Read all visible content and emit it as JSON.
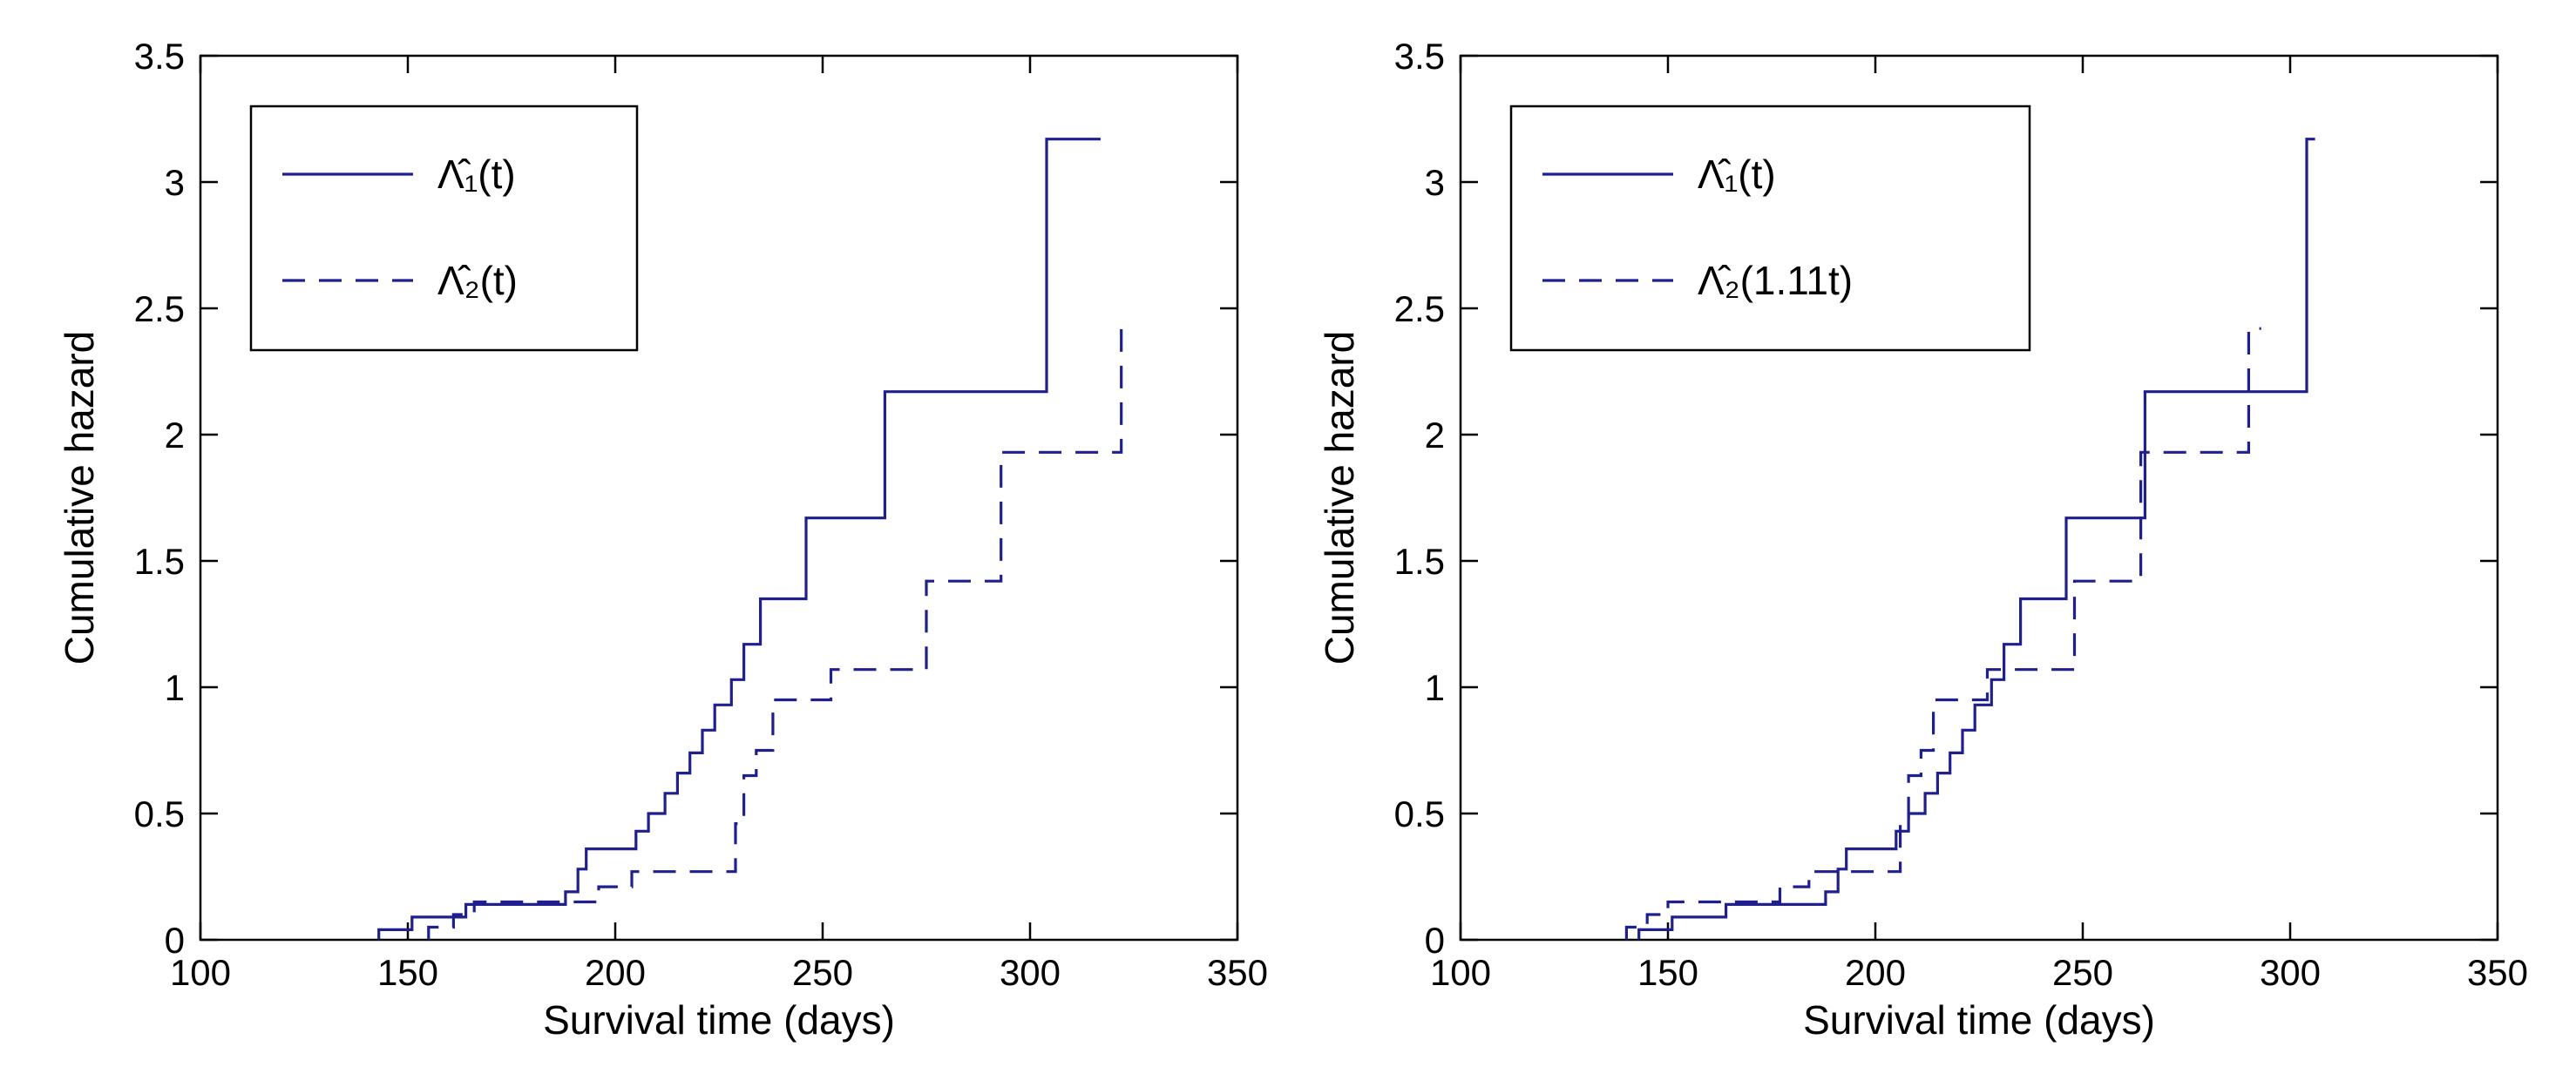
{
  "figure": {
    "background": "#ffffff",
    "line_color": "#1f1f8e",
    "axis_color": "#000000",
    "text_color": "#000000"
  },
  "chart_data": [
    {
      "type": "line",
      "subtype": "step",
      "title": "",
      "xlabel": "Survival time (days)",
      "ylabel": "Cumulative hazard",
      "xlim": [
        100,
        350
      ],
      "ylim": [
        0,
        3.5
      ],
      "xticks": [
        100,
        150,
        200,
        250,
        300,
        350
      ],
      "yticks": [
        0,
        0.5,
        1,
        1.5,
        2,
        2.5,
        3,
        3.5
      ],
      "grid": false,
      "legend_position": "upper-left",
      "series": [
        {
          "name": "Λ̂₁(t)",
          "style": "solid",
          "x": [
            143,
            151,
            164,
            188,
            191,
            193,
            205,
            208,
            212,
            215,
            218,
            221,
            224,
            228,
            231,
            235,
            246,
            265,
            304
          ],
          "y": [
            0.04,
            0.09,
            0.14,
            0.19,
            0.28,
            0.36,
            0.43,
            0.5,
            0.58,
            0.66,
            0.74,
            0.83,
            0.93,
            1.03,
            1.17,
            1.35,
            1.67,
            2.17,
            3.17
          ],
          "x_end": 317
        },
        {
          "name": "Λ̂₂(t)",
          "style": "dashed",
          "x": [
            155,
            161,
            166,
            196,
            204,
            229,
            231,
            234,
            238,
            252,
            275,
            293,
            322
          ],
          "y": [
            0.05,
            0.1,
            0.15,
            0.21,
            0.27,
            0.46,
            0.65,
            0.75,
            0.95,
            1.07,
            1.42,
            1.93,
            2.42
          ],
          "x_end": 325
        }
      ]
    },
    {
      "type": "line",
      "subtype": "step",
      "title": "",
      "xlabel": "Survival time (days)",
      "ylabel": "Cumulative hazard",
      "xlim": [
        100,
        350
      ],
      "ylim": [
        0,
        3.5
      ],
      "xticks": [
        100,
        150,
        200,
        250,
        300,
        350
      ],
      "yticks": [
        0,
        0.5,
        1,
        1.5,
        2,
        2.5,
        3,
        3.5
      ],
      "grid": false,
      "legend_position": "upper-left",
      "series": [
        {
          "name": "Λ̂₁(t)",
          "style": "solid",
          "x": [
            143,
            151,
            164,
            188,
            191,
            193,
            205,
            208,
            212,
            215,
            218,
            221,
            224,
            228,
            231,
            235,
            246,
            265,
            304
          ],
          "y": [
            0.04,
            0.09,
            0.14,
            0.19,
            0.28,
            0.36,
            0.43,
            0.5,
            0.58,
            0.66,
            0.74,
            0.83,
            0.93,
            1.03,
            1.17,
            1.35,
            1.67,
            2.17,
            3.17
          ],
          "x_end": 306
        },
        {
          "name": "Λ̂₂(1.11t)",
          "style": "dashed",
          "x": [
            140,
            145,
            150,
            177,
            184,
            206,
            208,
            211,
            214,
            227,
            248,
            264,
            290
          ],
          "y": [
            0.05,
            0.1,
            0.15,
            0.21,
            0.27,
            0.46,
            0.65,
            0.75,
            0.95,
            1.07,
            1.42,
            1.93,
            2.42
          ],
          "x_end": 293
        }
      ]
    }
  ]
}
